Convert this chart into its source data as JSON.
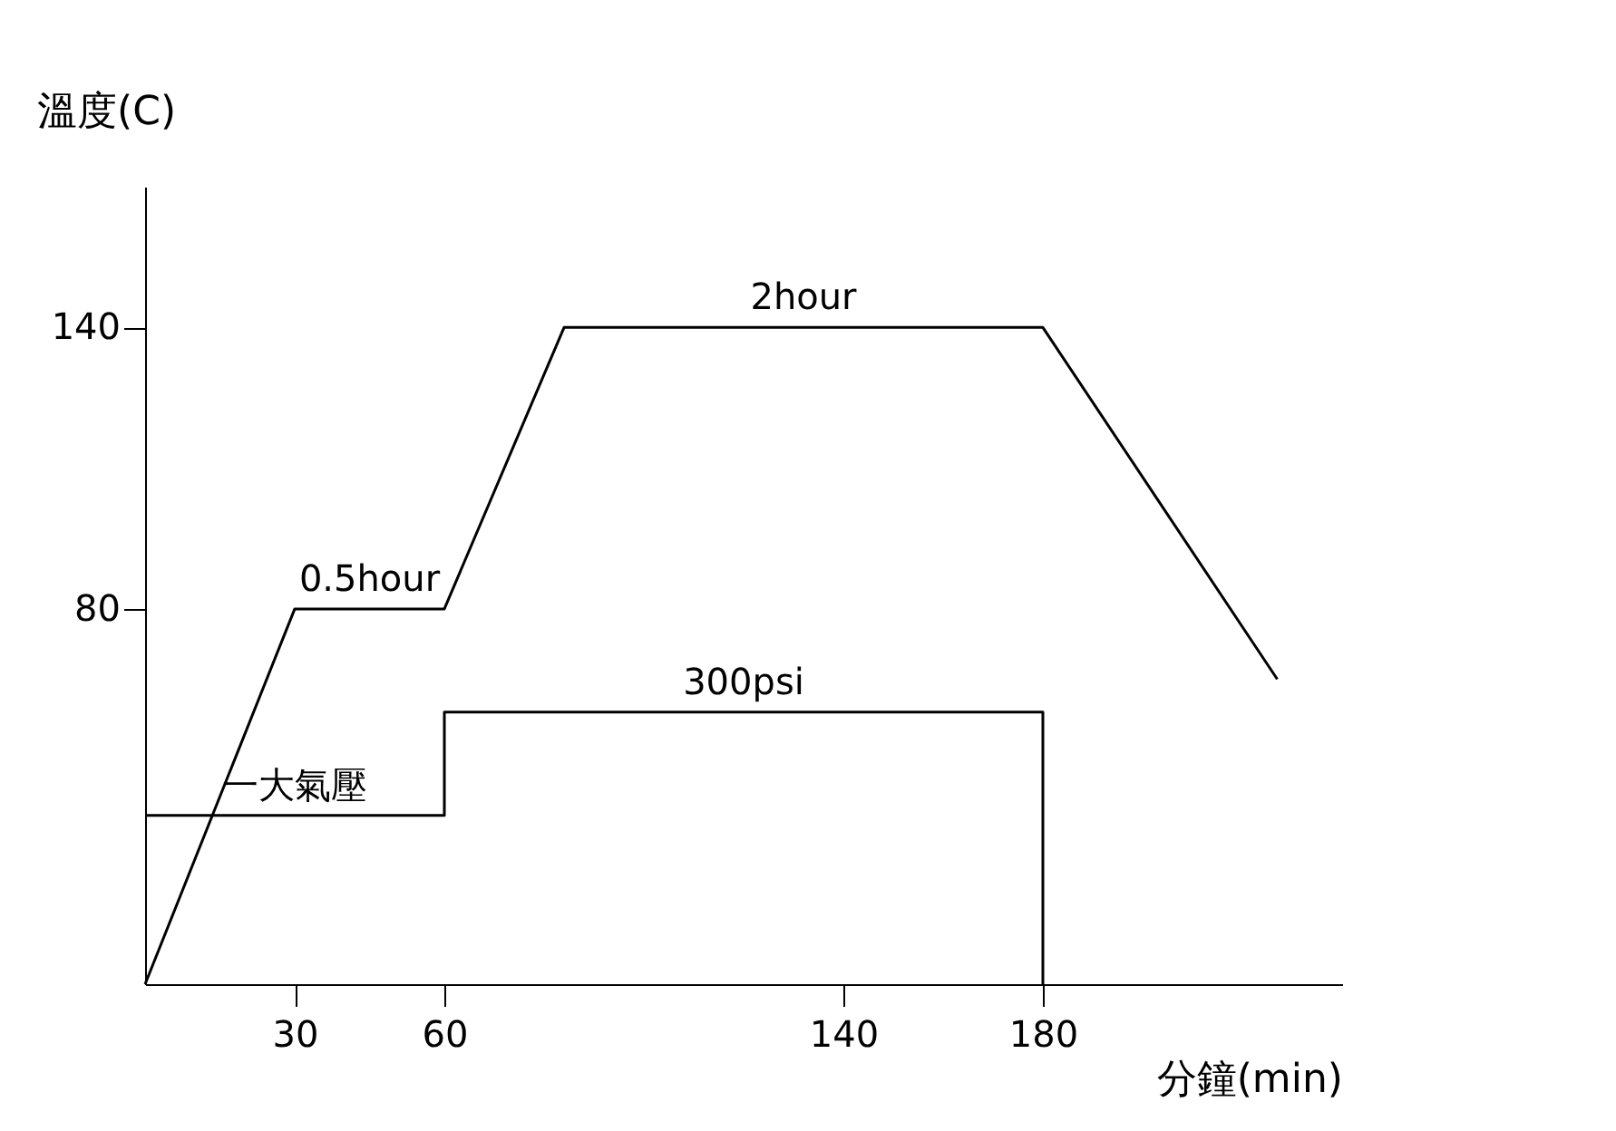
{
  "chart_data": {
    "type": "line",
    "xlabel": "分鐘(min)",
    "ylabel": "溫度(C)",
    "series": [
      {
        "x": [
          0,
          30,
          60,
          84,
          180,
          227
        ],
        "values": [
          0,
          80,
          80,
          140,
          140,
          65
        ],
        "color": "#000000"
      },
      {
        "x": [
          0,
          60,
          60,
          180,
          180
        ],
        "values": [
          36,
          36,
          58,
          58,
          0
        ],
        "color": "#000000"
      }
    ],
    "xlim": [
      0,
      240
    ],
    "ylim": [
      0,
      170
    ],
    "xticks": [
      30,
      60,
      140,
      180
    ],
    "yticks": [
      80,
      140
    ],
    "grid": false,
    "marker": "none",
    "line_style": "solid",
    "annotations": [
      {
        "text": "0.5hour",
        "x": 45,
        "y": 80
      },
      {
        "text": "2hour",
        "x": 132,
        "y": 140
      },
      {
        "text": "300psi",
        "x": 120,
        "y": 58
      },
      {
        "text": "一大氣壓",
        "x": 30,
        "y": 36
      }
    ]
  }
}
